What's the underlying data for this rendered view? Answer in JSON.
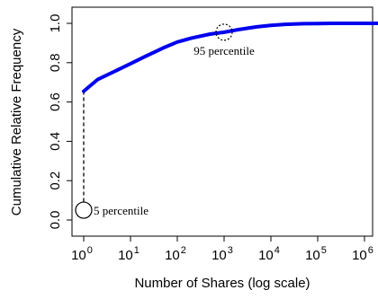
{
  "chart_data": {
    "type": "line",
    "title": "",
    "xlabel": "Number of Shares (log scale)",
    "ylabel": "Cumulative Relative Frequency",
    "x_scale": "log",
    "xlim": [
      1,
      2000000
    ],
    "ylim": [
      0,
      1.0
    ],
    "grid": false,
    "x_ticks": [
      {
        "value": 1,
        "base": "10",
        "exp": "0"
      },
      {
        "value": 10,
        "base": "10",
        "exp": "1"
      },
      {
        "value": 100,
        "base": "10",
        "exp": "2"
      },
      {
        "value": 1000,
        "base": "10",
        "exp": "3"
      },
      {
        "value": 10000,
        "base": "10",
        "exp": "4"
      },
      {
        "value": 100000,
        "base": "10",
        "exp": "5"
      },
      {
        "value": 1000000,
        "base": "10",
        "exp": "6"
      }
    ],
    "y_ticks": [
      {
        "value": 0.0,
        "label": "0.0"
      },
      {
        "value": 0.2,
        "label": "0.2"
      },
      {
        "value": 0.4,
        "label": "0.4"
      },
      {
        "value": 0.6,
        "label": "0.6"
      },
      {
        "value": 0.8,
        "label": "0.8"
      },
      {
        "value": 1.0,
        "label": "1.0"
      }
    ],
    "series": [
      {
        "color": "#0000ee",
        "x": [
          1,
          2,
          5,
          10,
          20,
          50,
          100,
          200,
          500,
          1000,
          2000,
          5000,
          10000,
          20000,
          50000,
          100000,
          200000,
          500000,
          1000000,
          2000000
        ],
        "y": [
          0.655,
          0.715,
          0.76,
          0.795,
          0.83,
          0.875,
          0.905,
          0.925,
          0.945,
          0.955,
          0.968,
          0.982,
          0.99,
          0.995,
          0.998,
          0.999,
          1.0,
          1.0,
          1.0,
          1.0
        ]
      }
    ],
    "annotations": [
      {
        "text": "5 percentile",
        "x": 1,
        "y": 0.05,
        "marker": "circle",
        "style": "solid"
      },
      {
        "text": "95 percentile",
        "x": 1000,
        "y": 0.955,
        "marker": "circle",
        "style": "dotted"
      }
    ],
    "drop_line": {
      "x": 1,
      "y_from": 0.655,
      "y_to": 0.05,
      "style": "dashed"
    }
  }
}
